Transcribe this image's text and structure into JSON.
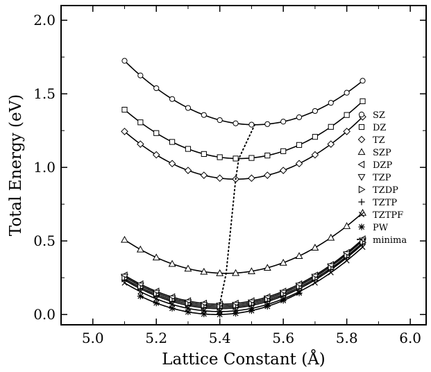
{
  "chart_data": {
    "type": "line",
    "title": "",
    "xlabel": "Lattice Constant  (Å)",
    "ylabel": "Total Energy  (eV)",
    "xlim": [
      4.9,
      6.05
    ],
    "ylim": [
      -0.07,
      2.1
    ],
    "xticks": [
      "5.0",
      "5.2",
      "5.4",
      "5.6",
      "5.8",
      "6.0"
    ],
    "yticks": [
      "0.0",
      "0.5",
      "1.0",
      "1.5",
      "2.0"
    ],
    "x_sample": [
      5.1,
      5.15,
      5.2,
      5.25,
      5.3,
      5.35,
      5.4,
      5.45,
      5.5,
      5.55,
      5.6,
      5.65,
      5.7,
      5.75,
      5.8,
      5.85
    ],
    "legend_position": "right",
    "series": [
      {
        "name": "SZ",
        "marker": "circle",
        "a0": 5.51,
        "emin": 1.29,
        "curv": 1.23,
        "x_min_plot": 5.1,
        "x_max_plot": 5.85
      },
      {
        "name": "DZ",
        "marker": "square",
        "a0": 5.46,
        "emin": 1.06,
        "curv": 1.22,
        "x_min_plot": 5.1,
        "x_max_plot": 5.85
      },
      {
        "name": "TZ",
        "marker": "diamond",
        "a0": 5.45,
        "emin": 0.92,
        "curv": 1.26,
        "x_min_plot": 5.1,
        "x_max_plot": 5.85
      },
      {
        "name": "SZP",
        "marker": "triangle-up",
        "a0": 5.42,
        "emin": 0.28,
        "curv": 1.06,
        "x_min_plot": 5.1,
        "x_max_plot": 5.85
      },
      {
        "name": "DZP",
        "marker": "triangle-left",
        "a0": 5.4,
        "emin": 0.07,
        "curv": 1.04,
        "x_min_plot": 5.1,
        "x_max_plot": 5.85
      },
      {
        "name": "TZP",
        "marker": "triangle-down",
        "a0": 5.4,
        "emin": 0.06,
        "curv": 1.04,
        "x_min_plot": 5.1,
        "x_max_plot": 5.85
      },
      {
        "name": "TZDP",
        "marker": "triangle-right",
        "a0": 5.4,
        "emin": 0.05,
        "curv": 1.03,
        "x_min_plot": 5.1,
        "x_max_plot": 5.85
      },
      {
        "name": "TZTP",
        "marker": "plus",
        "a0": 5.4,
        "emin": 0.04,
        "curv": 1.03,
        "x_min_plot": 5.1,
        "x_max_plot": 5.85
      },
      {
        "name": "TZTPF",
        "marker": "cross",
        "a0": 5.4,
        "emin": 0.02,
        "curv": 1.03,
        "x_min_plot": 5.1,
        "x_max_plot": 5.85
      },
      {
        "name": "PW",
        "marker": "asterisk",
        "a0": 5.39,
        "emin": 0.0,
        "curv": 1.03,
        "x_min_plot": 5.15,
        "x_max_plot": 5.65
      }
    ],
    "minima_line": {
      "name": "minima",
      "style": "dotted",
      "points": [
        [
          5.51,
          1.29
        ],
        [
          5.46,
          1.06
        ],
        [
          5.45,
          0.92
        ],
        [
          5.42,
          0.28
        ],
        [
          5.4,
          0.07
        ],
        [
          5.4,
          0.06
        ],
        [
          5.4,
          0.05
        ],
        [
          5.4,
          0.04
        ],
        [
          5.4,
          0.02
        ],
        [
          5.39,
          0.0
        ]
      ]
    }
  }
}
